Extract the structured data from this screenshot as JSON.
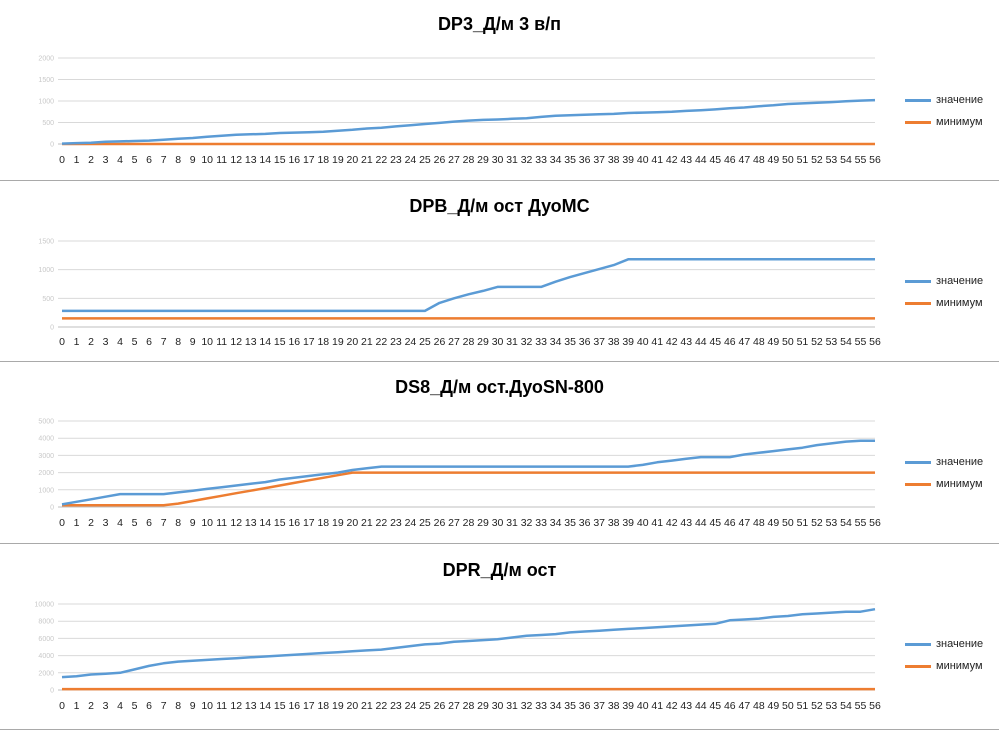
{
  "colors": {
    "value": "#5b9bd5",
    "min": "#ed7d31",
    "grid": "#d9d9d9",
    "axis": "#bfbfbf"
  },
  "chart_data": [
    {
      "type": "line",
      "title": "DP3_Д/м 3 в/п",
      "x": [
        0,
        1,
        2,
        3,
        4,
        5,
        6,
        7,
        8,
        9,
        10,
        11,
        12,
        13,
        14,
        15,
        16,
        17,
        18,
        19,
        20,
        21,
        22,
        23,
        24,
        25,
        26,
        27,
        28,
        29,
        30,
        31,
        32,
        33,
        34,
        35,
        36,
        37,
        38,
        39,
        40,
        41,
        42,
        43,
        44,
        45,
        46,
        47,
        48,
        49,
        50,
        51,
        52,
        53,
        54,
        55,
        56
      ],
      "ylim": [
        0,
        2000
      ],
      "yticks": [
        "0",
        "500",
        "1000",
        "1500",
        "2000"
      ],
      "grid": true,
      "legend": "right",
      "series": [
        {
          "name": "значение",
          "values": [
            10,
            20,
            30,
            50,
            60,
            70,
            80,
            100,
            120,
            140,
            170,
            190,
            215,
            225,
            235,
            255,
            265,
            275,
            285,
            310,
            330,
            360,
            380,
            410,
            435,
            465,
            490,
            520,
            545,
            560,
            570,
            585,
            600,
            630,
            655,
            670,
            680,
            690,
            700,
            720,
            730,
            740,
            750,
            770,
            785,
            805,
            830,
            850,
            880,
            900,
            930,
            945,
            960,
            975,
            995,
            1010,
            1020
          ]
        },
        {
          "name": "минимум",
          "values": [
            0,
            0,
            0,
            0,
            0,
            0,
            0,
            0,
            0,
            0,
            0,
            0,
            0,
            0,
            0,
            0,
            0,
            0,
            0,
            0,
            0,
            0,
            0,
            0,
            0,
            0,
            0,
            0,
            0,
            0,
            0,
            0,
            0,
            0,
            0,
            0,
            0,
            0,
            0,
            0,
            0,
            0,
            0,
            0,
            0,
            0,
            0,
            0,
            0,
            0,
            0,
            0,
            0,
            0,
            0,
            0,
            0
          ]
        }
      ]
    },
    {
      "type": "line",
      "title": "DPB_Д/м ост ДуоМС",
      "x": [
        0,
        1,
        2,
        3,
        4,
        5,
        6,
        7,
        8,
        9,
        10,
        11,
        12,
        13,
        14,
        15,
        16,
        17,
        18,
        19,
        20,
        21,
        22,
        23,
        24,
        25,
        26,
        27,
        28,
        29,
        30,
        31,
        32,
        33,
        34,
        35,
        36,
        37,
        38,
        39,
        40,
        41,
        42,
        43,
        44,
        45,
        46,
        47,
        48,
        49,
        50,
        51,
        52,
        53,
        54,
        55,
        56
      ],
      "ylim": [
        0,
        1500
      ],
      "yticks": [
        "0",
        "500",
        "1000",
        "1500"
      ],
      "grid": true,
      "legend": "right",
      "series": [
        {
          "name": "значение",
          "values": [
            280,
            280,
            280,
            280,
            280,
            280,
            280,
            280,
            280,
            280,
            280,
            280,
            280,
            280,
            280,
            280,
            280,
            280,
            280,
            280,
            280,
            280,
            280,
            280,
            280,
            280,
            420,
            500,
            570,
            630,
            700,
            700,
            700,
            700,
            790,
            870,
            940,
            1010,
            1080,
            1180,
            1180,
            1180,
            1180,
            1180,
            1180,
            1180,
            1180,
            1180,
            1180,
            1180,
            1180,
            1180,
            1180,
            1180,
            1180,
            1180,
            1180
          ]
        },
        {
          "name": "минимум",
          "values": [
            150,
            150,
            150,
            150,
            150,
            150,
            150,
            150,
            150,
            150,
            150,
            150,
            150,
            150,
            150,
            150,
            150,
            150,
            150,
            150,
            150,
            150,
            150,
            150,
            150,
            150,
            150,
            150,
            150,
            150,
            150,
            150,
            150,
            150,
            150,
            150,
            150,
            150,
            150,
            150,
            150,
            150,
            150,
            150,
            150,
            150,
            150,
            150,
            150,
            150,
            150,
            150,
            150,
            150,
            150,
            150,
            150
          ]
        }
      ]
    },
    {
      "type": "line",
      "title": "DS8_Д/м ост.ДуоSN-800",
      "x": [
        0,
        1,
        2,
        3,
        4,
        5,
        6,
        7,
        8,
        9,
        10,
        11,
        12,
        13,
        14,
        15,
        16,
        17,
        18,
        19,
        20,
        21,
        22,
        23,
        24,
        25,
        26,
        27,
        28,
        29,
        30,
        31,
        32,
        33,
        34,
        35,
        36,
        37,
        38,
        39,
        40,
        41,
        42,
        43,
        44,
        45,
        46,
        47,
        48,
        49,
        50,
        51,
        52,
        53,
        54,
        55,
        56
      ],
      "ylim": [
        0,
        5000
      ],
      "yticks": [
        "0",
        "1000",
        "2000",
        "3000",
        "4000",
        "5000"
      ],
      "grid": true,
      "legend": "right",
      "series": [
        {
          "name": "значение",
          "values": [
            150,
            300,
            450,
            600,
            750,
            750,
            750,
            750,
            850,
            950,
            1050,
            1150,
            1250,
            1350,
            1450,
            1600,
            1700,
            1800,
            1900,
            2000,
            2150,
            2250,
            2350,
            2350,
            2350,
            2350,
            2350,
            2350,
            2350,
            2350,
            2350,
            2350,
            2350,
            2350,
            2350,
            2350,
            2350,
            2350,
            2350,
            2350,
            2450,
            2600,
            2700,
            2800,
            2900,
            2900,
            2900,
            3050,
            3150,
            3250,
            3350,
            3450,
            3600,
            3700,
            3800,
            3850,
            3850
          ]
        },
        {
          "name": "минимум",
          "values": [
            100,
            100,
            100,
            100,
            100,
            100,
            100,
            100,
            200,
            350,
            500,
            650,
            800,
            950,
            1100,
            1250,
            1400,
            1550,
            1700,
            1850,
            2000,
            2000,
            2000,
            2000,
            2000,
            2000,
            2000,
            2000,
            2000,
            2000,
            2000,
            2000,
            2000,
            2000,
            2000,
            2000,
            2000,
            2000,
            2000,
            2000,
            2000,
            2000,
            2000,
            2000,
            2000,
            2000,
            2000,
            2000,
            2000,
            2000,
            2000,
            2000,
            2000,
            2000,
            2000,
            2000,
            2000
          ]
        }
      ]
    },
    {
      "type": "line",
      "title": "DPR_Д/м ост",
      "x": [
        0,
        1,
        2,
        3,
        4,
        5,
        6,
        7,
        8,
        9,
        10,
        11,
        12,
        13,
        14,
        15,
        16,
        17,
        18,
        19,
        20,
        21,
        22,
        23,
        24,
        25,
        26,
        27,
        28,
        29,
        30,
        31,
        32,
        33,
        34,
        35,
        36,
        37,
        38,
        39,
        40,
        41,
        42,
        43,
        44,
        45,
        46,
        47,
        48,
        49,
        50,
        51,
        52,
        53,
        54,
        55,
        56
      ],
      "ylim": [
        0,
        10000
      ],
      "yticks": [
        "0",
        "2000",
        "4000",
        "6000",
        "8000",
        "10000"
      ],
      "grid": true,
      "legend": "right",
      "series": [
        {
          "name": "значение",
          "values": [
            1500,
            1600,
            1800,
            1900,
            2000,
            2400,
            2800,
            3100,
            3300,
            3400,
            3500,
            3600,
            3700,
            3800,
            3900,
            4000,
            4100,
            4200,
            4300,
            4400,
            4500,
            4600,
            4700,
            4900,
            5100,
            5300,
            5400,
            5600,
            5700,
            5800,
            5900,
            6100,
            6300,
            6400,
            6500,
            6700,
            6800,
            6900,
            7000,
            7100,
            7200,
            7300,
            7400,
            7500,
            7600,
            7700,
            8100,
            8200,
            8300,
            8500,
            8600,
            8800,
            8900,
            9000,
            9100,
            9100,
            9400
          ]
        },
        {
          "name": "минимум",
          "values": [
            100,
            100,
            100,
            100,
            100,
            100,
            100,
            100,
            100,
            100,
            100,
            100,
            100,
            100,
            100,
            100,
            100,
            100,
            100,
            100,
            100,
            100,
            100,
            100,
            100,
            100,
            100,
            100,
            100,
            100,
            100,
            100,
            100,
            100,
            100,
            100,
            100,
            100,
            100,
            100,
            100,
            100,
            100,
            100,
            100,
            100,
            100,
            100,
            100,
            100,
            100,
            100,
            100,
            100,
            100,
            100,
            100
          ]
        }
      ]
    }
  ]
}
